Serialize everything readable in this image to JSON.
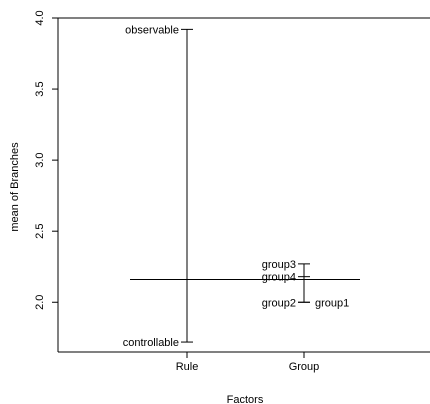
{
  "chart_data": {
    "type": "factor-means",
    "xlabel": "Factors",
    "ylabel": "mean of Branches",
    "ylim": [
      1.65,
      4.0
    ],
    "yticks": [
      2.0,
      2.5,
      3.0,
      3.5,
      4.0
    ],
    "ytick_labels": [
      "2.0",
      "2.5",
      "3.0",
      "3.5",
      "4.0"
    ],
    "grand_mean": 2.16,
    "factors": [
      {
        "name": "Rule",
        "levels": [
          {
            "label": "observable",
            "value": 3.92
          },
          {
            "label": "controllable",
            "value": 1.72
          }
        ]
      },
      {
        "name": "Group",
        "levels": [
          {
            "label": "group3",
            "value": 2.27
          },
          {
            "label": "group4",
            "value": 2.18
          },
          {
            "label": "group2",
            "value": 2.0
          },
          {
            "label": "group1",
            "value": 2.0
          }
        ]
      }
    ]
  }
}
